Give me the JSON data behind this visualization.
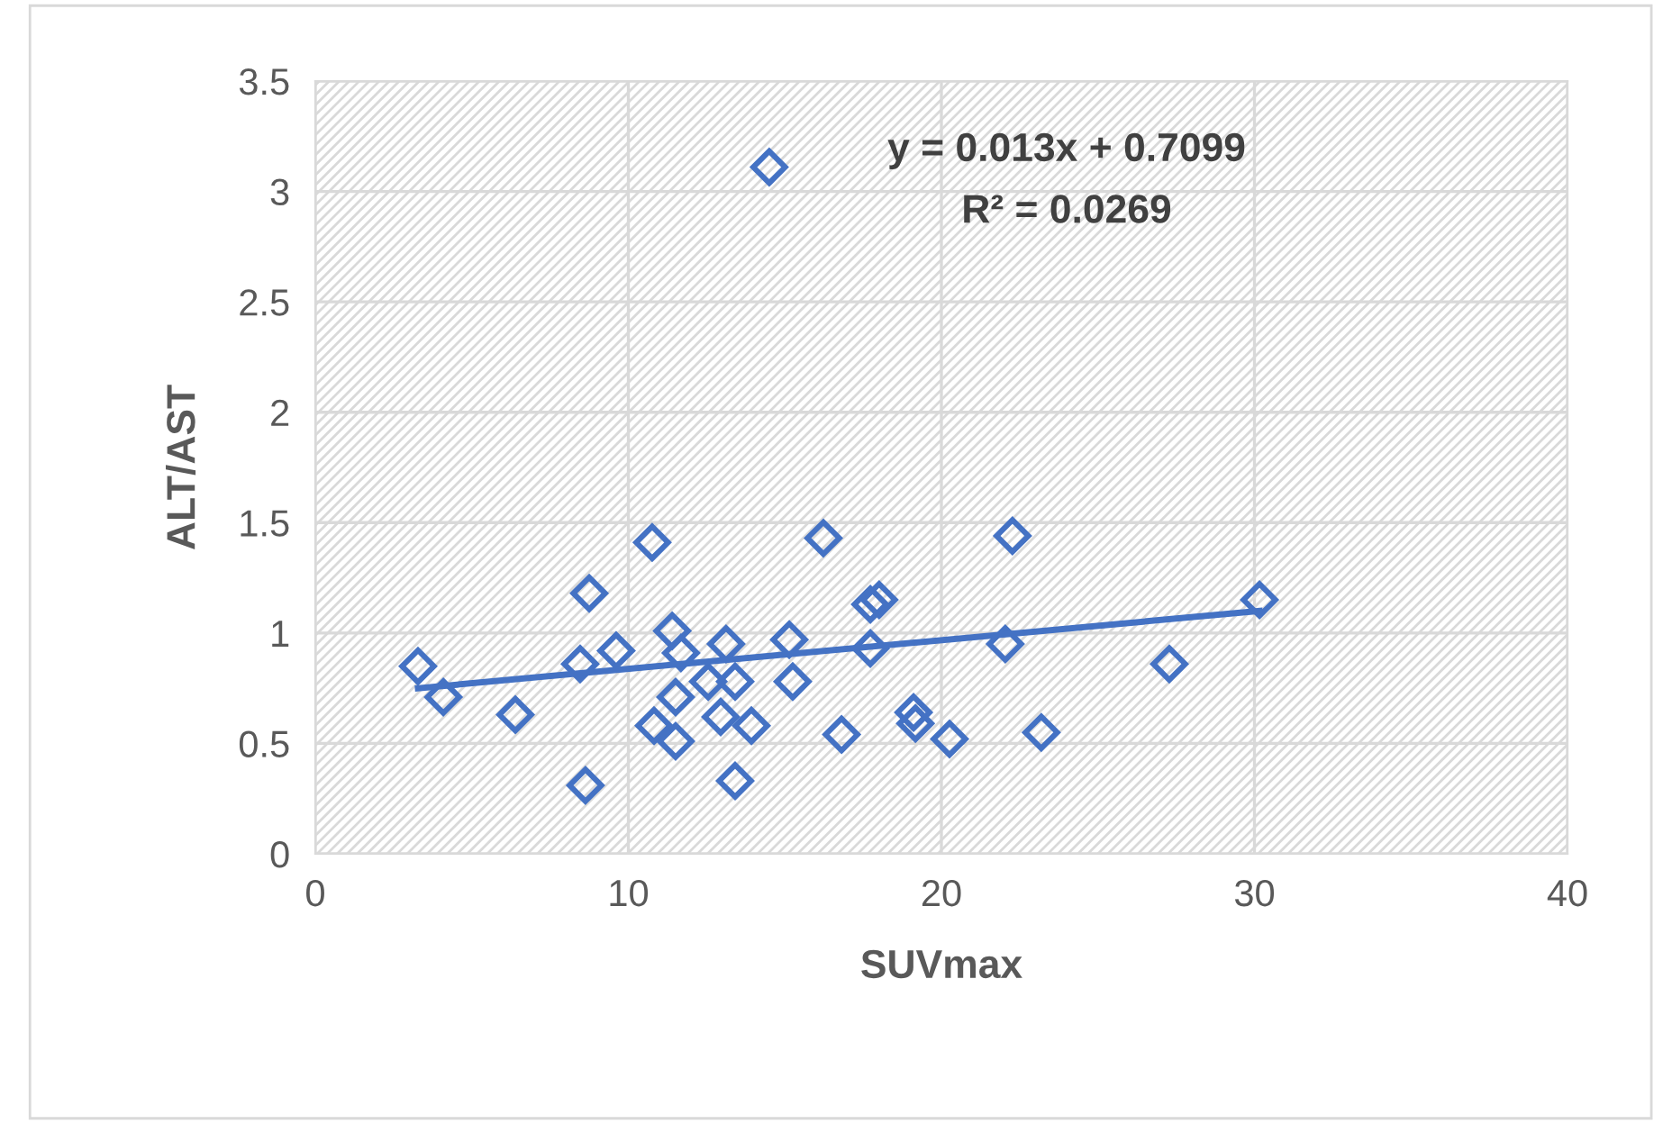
{
  "chart_data": {
    "type": "scatter",
    "xlabel": "SUVmax",
    "ylabel": "ALT/AST",
    "xlim": [
      0,
      40
    ],
    "xticks": [
      0,
      10,
      20,
      30,
      40
    ],
    "ylim": [
      0,
      3.5
    ],
    "yticks": [
      0,
      0.5,
      1,
      1.5,
      2,
      2.5,
      3,
      3.5
    ],
    "grid": true,
    "marker": "diamond",
    "series": [
      {
        "color": "#4472c4",
        "x": [
          3.28,
          4.09,
          6.39,
          8.46,
          8.75,
          8.63,
          9.61,
          10.76,
          11.4,
          11.68,
          12.55,
          13.12,
          13.41,
          11.51,
          10.82,
          11.51,
          12.95,
          13.41,
          13.93,
          14.5,
          15.14,
          15.25,
          16.23,
          16.81,
          17.73,
          18.01,
          17.73,
          19.11,
          19.17,
          20.26,
          22.27,
          22.04,
          23.19,
          27.28,
          30.16
        ],
        "values": [
          0.85,
          0.71,
          0.63,
          0.86,
          1.18,
          0.31,
          0.92,
          1.41,
          1.01,
          0.91,
          0.78,
          0.95,
          0.78,
          0.71,
          0.58,
          0.51,
          0.62,
          0.33,
          0.58,
          3.11,
          0.97,
          0.78,
          1.43,
          0.54,
          1.13,
          1.15,
          0.93,
          0.64,
          0.59,
          0.52,
          1.44,
          0.95,
          0.55,
          0.86,
          1.15
        ]
      },
      {
        "type": "line",
        "color": "#4472c4",
        "marker": "none",
        "line_style": "solid",
        "x": [
          3.28,
          30.16
        ],
        "values": [
          0.75,
          1.1
        ]
      }
    ],
    "annotations": [
      "y = 0.013x + 0.7099",
      "R² = 0.0269"
    ]
  }
}
